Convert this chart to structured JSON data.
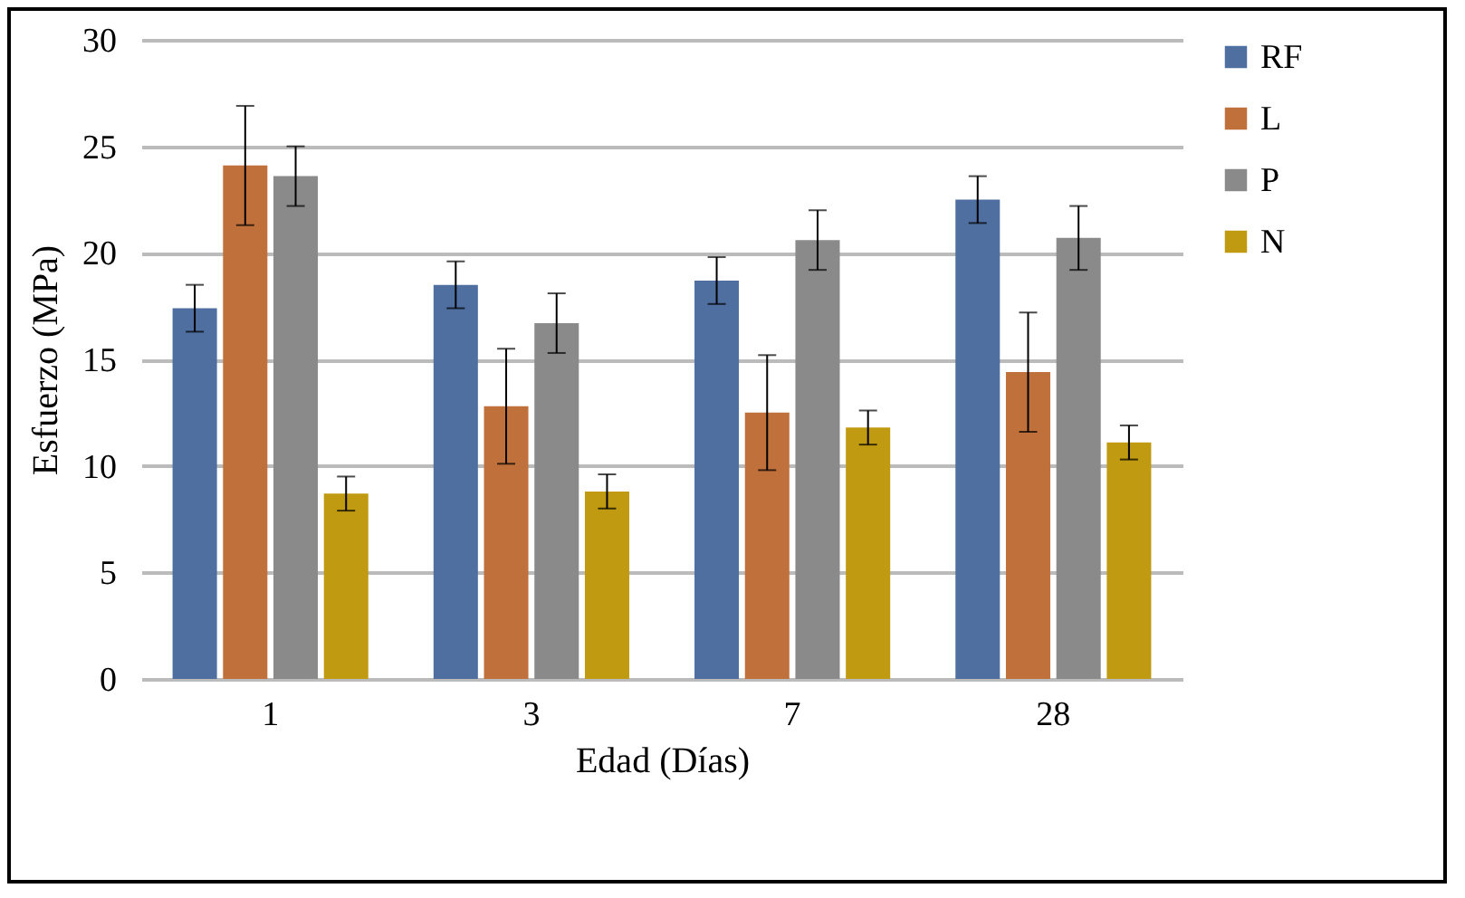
{
  "chart_data": {
    "type": "bar",
    "xlabel": "Edad (Días)",
    "ylabel": "Esfuerzo (MPa)",
    "categories": [
      "1",
      "3",
      "7",
      "28"
    ],
    "series": [
      {
        "name": "RF",
        "color": "#4f6fa0",
        "values": [
          17.4,
          18.5,
          18.7,
          22.5
        ],
        "errors": [
          1.1,
          1.1,
          1.1,
          1.1
        ]
      },
      {
        "name": "L",
        "color": "#c0703a",
        "values": [
          24.1,
          12.8,
          12.5,
          14.4
        ],
        "errors": [
          2.8,
          2.7,
          2.7,
          2.8
        ]
      },
      {
        "name": "P",
        "color": "#8a8a8a",
        "values": [
          23.6,
          16.7,
          20.6,
          20.7
        ],
        "errors": [
          1.4,
          1.4,
          1.4,
          1.5
        ]
      },
      {
        "name": "N",
        "color": "#c09a10",
        "values": [
          8.7,
          8.8,
          11.8,
          11.1
        ],
        "errors": [
          0.8,
          0.8,
          0.8,
          0.8
        ]
      }
    ],
    "ylim": [
      0,
      30
    ],
    "yticks": [
      0,
      5,
      10,
      15,
      20,
      25,
      30
    ],
    "grid": "y",
    "legend": "right"
  }
}
